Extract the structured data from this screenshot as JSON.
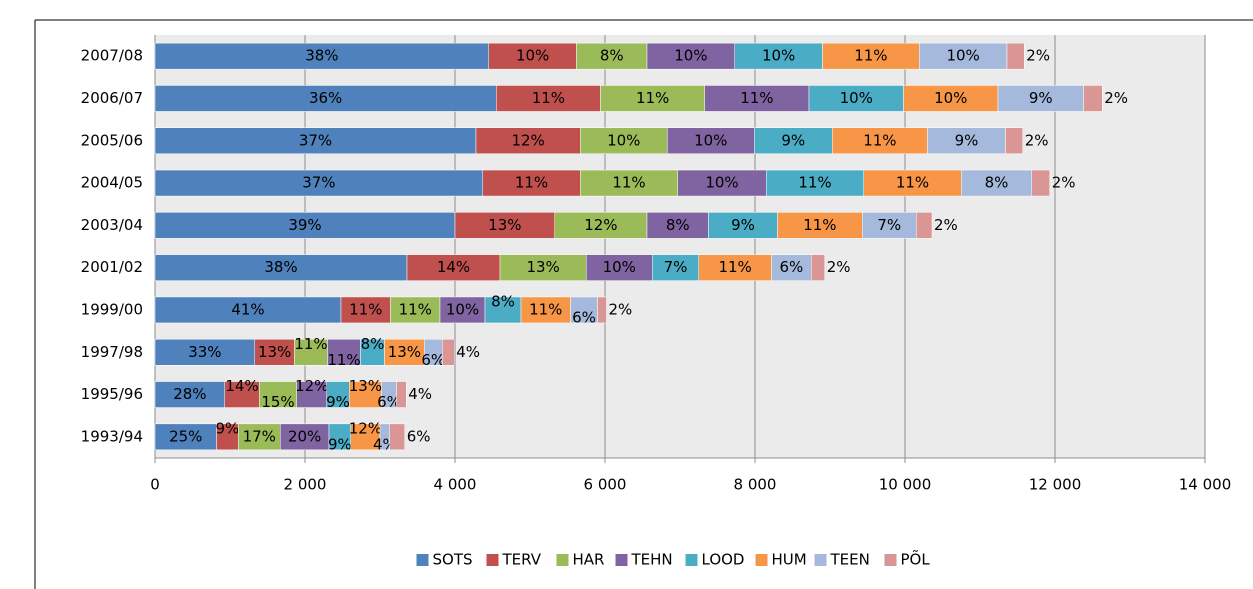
{
  "chart_data": {
    "type": "stacked-bar-horizontal",
    "categories": [
      "2007/08",
      "2006/07",
      "2005/06",
      "2004/05",
      "2003/04",
      "2001/02",
      "1999/00",
      "1997/98",
      "1995/96",
      "1993/94"
    ],
    "xlim": [
      0,
      14000
    ],
    "xticks": [
      0,
      {
        "value": 2000,
        "label": "2 000"
      },
      {
        "value": 4000,
        "label": "4 000"
      },
      {
        "value": 6000,
        "label": "6 000"
      },
      {
        "value": 8000,
        "label": "8 000"
      },
      {
        "value": 10000,
        "label": "10 000"
      },
      {
        "value": 12000,
        "label": "12 000"
      },
      {
        "value": 14000,
        "label": "14 000"
      }
    ],
    "grid": true,
    "legend": "bottom",
    "series": [
      {
        "name": "SOTS",
        "color": "#4f81bd",
        "values": [
          4450,
          4550,
          4280,
          4370,
          4000,
          3360,
          2480,
          1330,
          930,
          820
        ],
        "value_labels": [
          "38%",
          "36%",
          "37%",
          "37%",
          "39%",
          "38%",
          "41%",
          "33%",
          "28%",
          "25%"
        ]
      },
      {
        "name": "TERV",
        "color": "#c0504d",
        "values": [
          1170,
          1390,
          1390,
          1300,
          1330,
          1240,
          660,
          530,
          460,
          290
        ],
        "value_labels": [
          "10%",
          "11%",
          "12%",
          "11%",
          "13%",
          "14%",
          "11%",
          "13%",
          "14%",
          "9%"
        ]
      },
      {
        "name": "HAR",
        "color": "#9bbb59",
        "values": [
          940,
          1390,
          1160,
          1300,
          1230,
          1150,
          660,
          440,
          500,
          560
        ],
        "value_labels": [
          "8%",
          "11%",
          "10%",
          "11%",
          "12%",
          "13%",
          "11%",
          "11%",
          "15%",
          "17%"
        ]
      },
      {
        "name": "TEHN",
        "color": "#8064a2",
        "values": [
          1170,
          1390,
          1160,
          1180,
          820,
          880,
          600,
          440,
          400,
          650
        ],
        "value_labels": [
          "10%",
          "11%",
          "10%",
          "10%",
          "8%",
          "10%",
          "10%",
          "11%",
          "12%",
          "20%"
        ]
      },
      {
        "name": "LOOD",
        "color": "#4bacc6",
        "values": [
          1170,
          1260,
          1040,
          1300,
          920,
          620,
          480,
          320,
          300,
          290
        ],
        "value_labels": [
          "10%",
          "10%",
          "9%",
          "11%",
          "9%",
          "7%",
          "8%",
          "8%",
          "9%",
          "9%"
        ]
      },
      {
        "name": "HUM",
        "color": "#f79646",
        "values": [
          1290,
          1260,
          1270,
          1300,
          1130,
          970,
          660,
          530,
          430,
          390
        ],
        "value_labels": [
          "11%",
          "10%",
          "11%",
          "11%",
          "11%",
          "11%",
          "11%",
          "13%",
          "13%",
          "12%"
        ]
      },
      {
        "name": "TEEN",
        "color": "#a5b9dc",
        "values": [
          1170,
          1140,
          1040,
          940,
          720,
          530,
          360,
          240,
          200,
          130
        ],
        "value_labels": [
          "10%",
          "9%",
          "9%",
          "8%",
          "7%",
          "6%",
          "6%",
          "6%",
          "6%",
          "4%"
        ]
      },
      {
        "name": "PÕL",
        "color": "#d99694",
        "values": [
          230,
          250,
          230,
          240,
          210,
          180,
          120,
          160,
          130,
          200
        ],
        "value_labels": [
          "2%",
          "2%",
          "2%",
          "2%",
          "2%",
          "2%",
          "2%",
          "4%",
          "4%",
          "6%"
        ]
      }
    ]
  }
}
